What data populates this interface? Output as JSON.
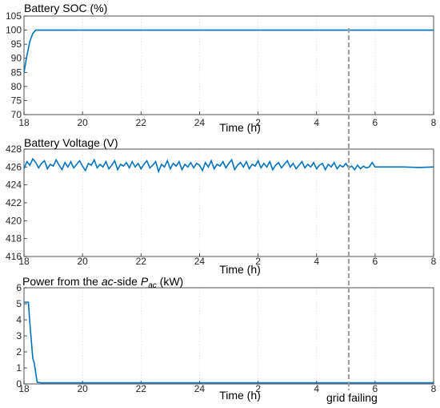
{
  "chart_data": [
    {
      "type": "line",
      "title": "Battery SOC (%)",
      "xlabel": "Time (h)",
      "xticks": [
        "18",
        "20",
        "22",
        "24",
        "2",
        "4",
        "6",
        "8"
      ],
      "ylim": [
        70,
        105
      ],
      "yticks": [
        70,
        75,
        80,
        85,
        90,
        95,
        100,
        105
      ],
      "grid": true,
      "series": [
        {
          "x": [
            18,
            18.1,
            18.2,
            18.3,
            18.4,
            18.5,
            22,
            26,
            30,
            32
          ],
          "y": [
            85,
            91,
            96,
            98.8,
            100,
            100,
            100,
            100,
            100,
            100
          ]
        }
      ]
    },
    {
      "type": "line",
      "title": "Battery Voltage (V)",
      "xlabel": "Time (h)",
      "xticks": [
        "18",
        "20",
        "22",
        "24",
        "2",
        "4",
        "6",
        "8"
      ],
      "ylim": [
        416,
        428
      ],
      "yticks": [
        416,
        418,
        420,
        422,
        424,
        426,
        428
      ],
      "grid": true,
      "series": [
        {
          "x": [
            18,
            18.1,
            18.2,
            18.3,
            18.4,
            18.5,
            18.6,
            18.7,
            18.8,
            18.9,
            19,
            19.1,
            19.2,
            19.3,
            19.4,
            19.5,
            19.6,
            19.7,
            19.8,
            19.9,
            20,
            20.1,
            20.2,
            20.3,
            20.4,
            20.5,
            20.6,
            20.7,
            20.8,
            20.9,
            21,
            21.1,
            21.2,
            21.3,
            21.4,
            21.5,
            21.6,
            21.7,
            21.8,
            21.9,
            22,
            22.1,
            22.2,
            22.3,
            22.4,
            22.5,
            22.6,
            22.7,
            22.8,
            22.9,
            23,
            23.1,
            23.2,
            23.3,
            23.4,
            23.5,
            23.6,
            23.7,
            23.8,
            23.9,
            24,
            24.1,
            24.2,
            24.3,
            24.4,
            24.5,
            24.6,
            24.7,
            24.8,
            24.9,
            25,
            25.1,
            25.2,
            25.3,
            25.4,
            25.5,
            25.6,
            25.7,
            25.8,
            25.9,
            26,
            26.1,
            26.2,
            26.3,
            26.4,
            26.5,
            26.6,
            26.7,
            26.8,
            26.9,
            27,
            27.1,
            27.2,
            27.3,
            27.4,
            27.5,
            27.6,
            27.7,
            27.8,
            27.9,
            28,
            28.1,
            28.2,
            28.3,
            28.4,
            28.5,
            28.6,
            28.7,
            28.8,
            28.9,
            29,
            29.1,
            29.2,
            29.3,
            29.4,
            29.5,
            29.6,
            29.7,
            29.8,
            29.9,
            30,
            30.5,
            31,
            31.5,
            32
          ],
          "y": [
            425.8,
            426.6,
            426.2,
            426.9,
            426.5,
            425.9,
            426.4,
            426.7,
            425.8,
            426.3,
            426.1,
            426.8,
            426.2,
            425.7,
            426.5,
            426.0,
            426.6,
            425.9,
            426.3,
            426.7,
            426.1,
            425.6,
            426.4,
            426.2,
            426.8,
            425.9,
            426.3,
            426.0,
            426.6,
            425.8,
            426.2,
            426.7,
            425.7,
            426.3,
            426.1,
            426.5,
            425.9,
            426.6,
            426.0,
            426.4,
            425.8,
            426.3,
            426.7,
            425.9,
            426.2,
            426.6,
            425.5,
            426.3,
            426.0,
            426.7,
            425.8,
            426.4,
            426.1,
            426.6,
            425.7,
            426.3,
            426.0,
            426.5,
            425.9,
            426.4,
            426.2,
            425.6,
            426.5,
            426.0,
            426.7,
            425.8,
            426.3,
            426.1,
            426.6,
            425.9,
            426.4,
            426.8,
            425.7,
            426.2,
            426.5,
            426.0,
            426.6,
            425.8,
            426.3,
            426.1,
            426.7,
            425.9,
            426.4,
            426.0,
            426.6,
            425.7,
            426.2,
            426.5,
            425.9,
            426.3,
            426.7,
            426.0,
            426.4,
            425.8,
            426.2,
            426.6,
            425.9,
            426.3,
            426.0,
            426.5,
            425.8,
            426.2,
            426.4,
            425.7,
            426.3,
            426.0,
            426.5,
            425.8,
            426.2,
            426.0,
            426.4,
            425.9,
            426.1,
            425.7,
            426.2,
            425.8,
            426.1,
            425.9,
            426.0,
            426.5,
            426.0,
            426.0,
            426.0,
            425.95,
            426.0
          ]
        }
      ]
    },
    {
      "type": "line",
      "title": "Power from the ac-side Pac (kW)",
      "xlabel": "Time (h)",
      "xticks": [
        "18",
        "20",
        "22",
        "24",
        "2",
        "4",
        "6",
        "8"
      ],
      "ylim": [
        0,
        6
      ],
      "yticks": [
        0,
        1,
        2,
        3,
        4,
        5,
        6
      ],
      "grid": true,
      "annotation": "grid failing",
      "series": [
        {
          "x": [
            18,
            18.15,
            18.2,
            18.3,
            18.35,
            18.45,
            18.6,
            22,
            26,
            30,
            32
          ],
          "y": [
            5.1,
            5.1,
            3.8,
            1.6,
            1.3,
            0.1,
            0.07,
            0.07,
            0.07,
            0.07,
            0.07
          ]
        }
      ]
    }
  ],
  "event_x": 29.1
}
